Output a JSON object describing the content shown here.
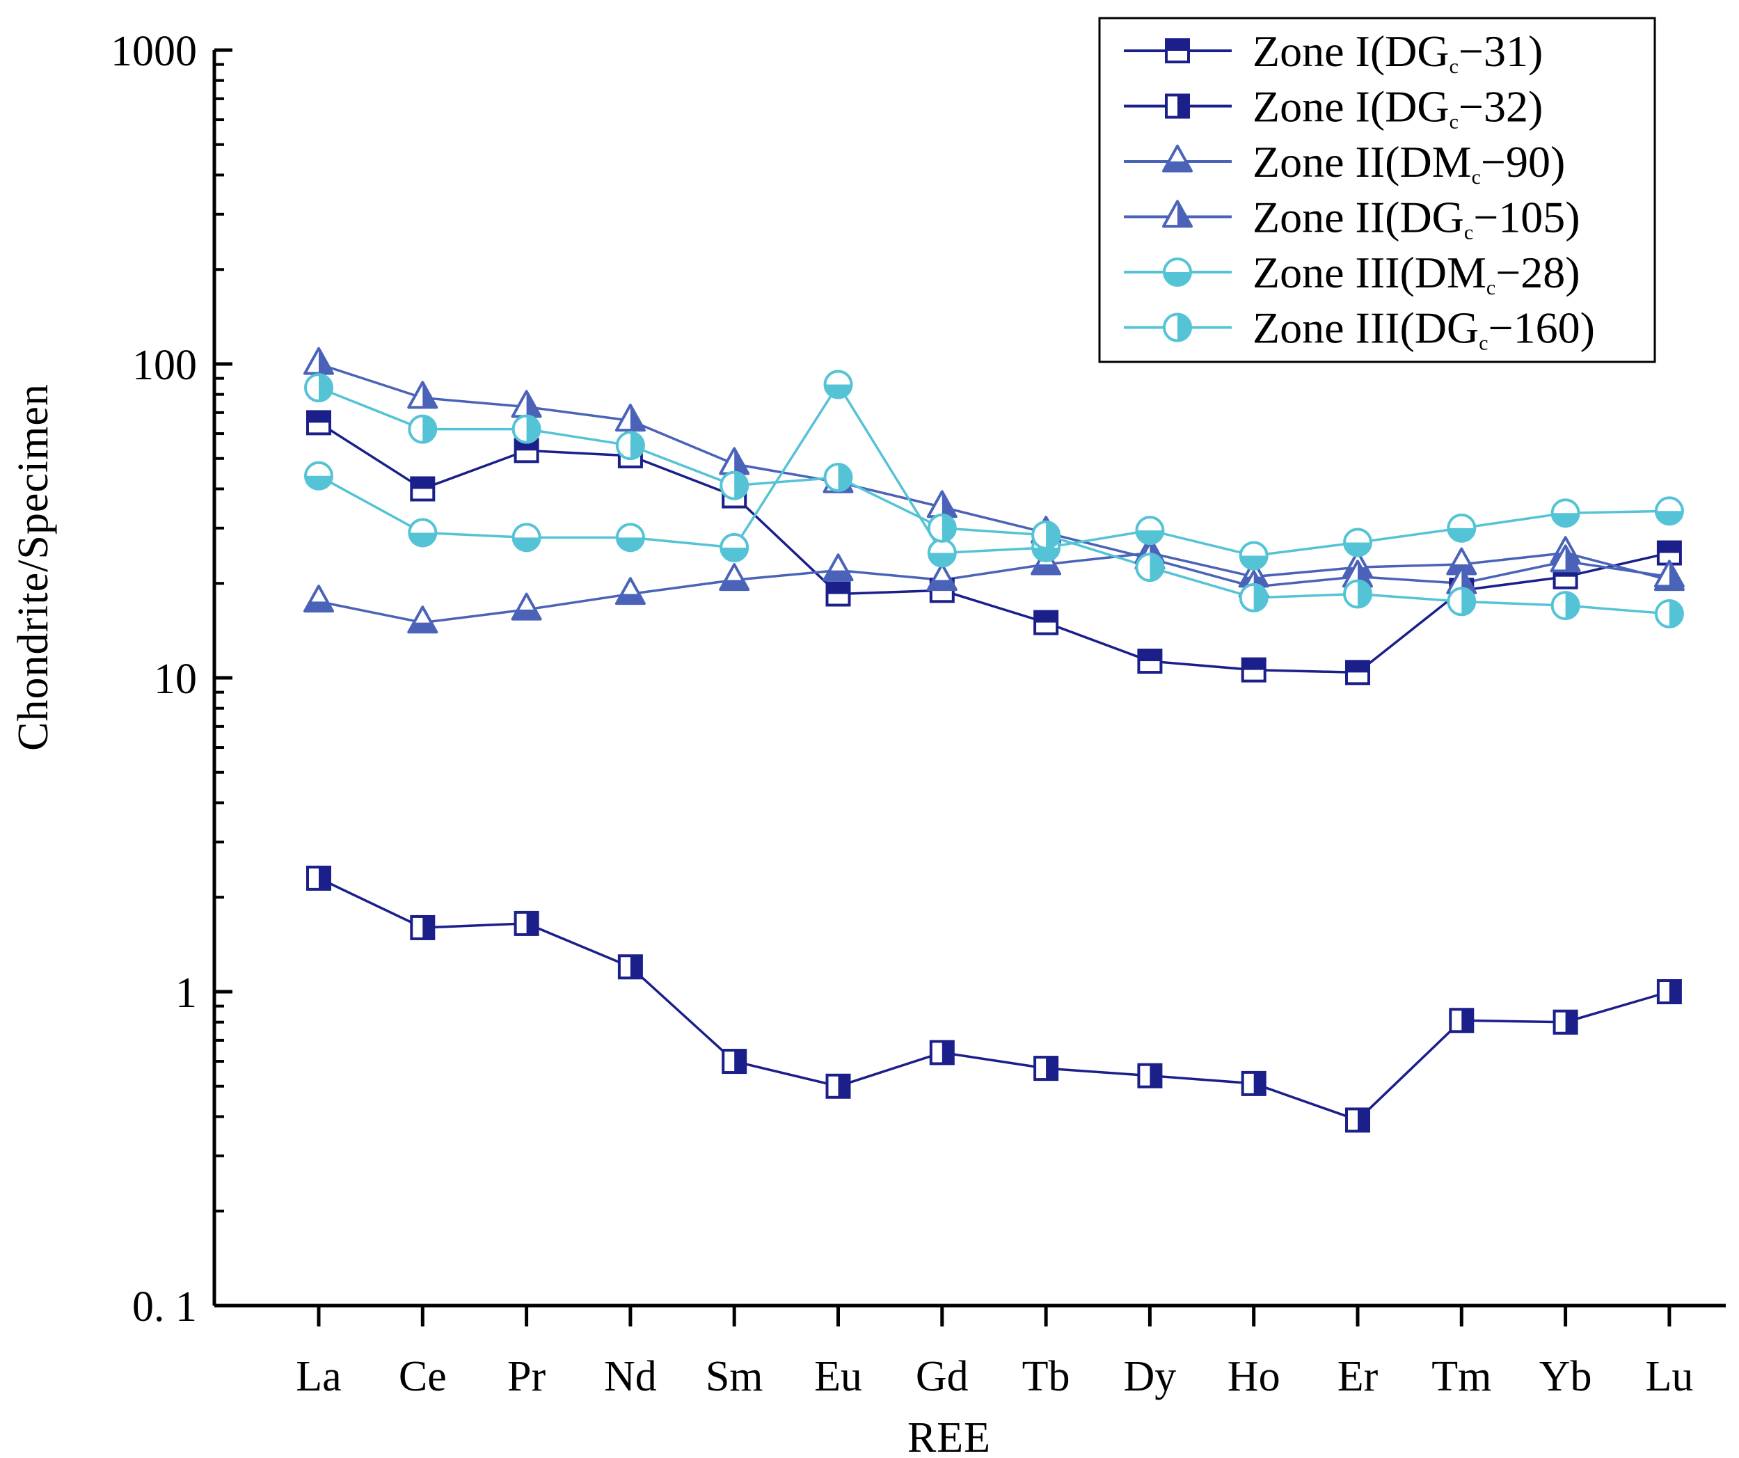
{
  "chart_data": {
    "type": "line",
    "yscale": "log",
    "xlabel": "REE",
    "ylabel": "Chondrite/Specimen",
    "ylim": [
      0.1,
      1000
    ],
    "yticks": [
      "0. 1",
      "1",
      "10",
      "100",
      "1000"
    ],
    "categories": [
      "La",
      "Ce",
      "Pr",
      "Nd",
      "Sm",
      "Eu",
      "Gd",
      "Tb",
      "Dy",
      "Ho",
      "Er",
      "Tm",
      "Yb",
      "Lu"
    ],
    "legend_position": "top-right",
    "series": [
      {
        "name": "Zone I(DGc−31)",
        "legend": {
          "prefix": "Zone I(DG",
          "sub": "c",
          "suffix": "−31)"
        },
        "marker": "square-top-filled",
        "color": "#1a1f8a",
        "values": [
          65,
          40,
          53,
          51,
          38,
          18.5,
          19,
          15,
          11.3,
          10.6,
          10.4,
          19,
          21,
          25
        ]
      },
      {
        "name": "Zone I(DGc−32)",
        "legend": {
          "prefix": "Zone I(DG",
          "sub": "c",
          "suffix": "−32)"
        },
        "marker": "square-right-filled",
        "color": "#1a1f8a",
        "values": [
          2.3,
          1.6,
          1.65,
          1.2,
          0.6,
          0.5,
          0.64,
          0.57,
          0.54,
          0.51,
          0.39,
          0.81,
          0.8,
          1.0
        ]
      },
      {
        "name": "Zone II(DMc−90)",
        "legend": {
          "prefix": "Zone II(DM",
          "sub": "c",
          "suffix": "−90)"
        },
        "marker": "triangle-bottom-filled",
        "color": "#4a63b8",
        "values": [
          17.5,
          15,
          16.5,
          18.5,
          20.5,
          22,
          20.5,
          23,
          25,
          21,
          22.5,
          23,
          25,
          20.5
        ]
      },
      {
        "name": "Zone II(DGc−105)",
        "legend": {
          "prefix": "Zone II(DG",
          "sub": "c",
          "suffix": "−105)"
        },
        "marker": "triangle-right-filled",
        "color": "#4a63b8",
        "values": [
          100,
          78,
          73,
          66,
          48,
          42,
          35,
          29,
          24,
          19.5,
          21,
          20,
          23.5,
          21
        ]
      },
      {
        "name": "Zone III(DMc−28)",
        "legend": {
          "prefix": "Zone III(DM",
          "sub": "c",
          "suffix": "−28)"
        },
        "marker": "circle-bottom-filled",
        "color": "#55c3d6",
        "values": [
          44,
          29,
          28,
          28,
          26,
          86,
          25,
          26,
          29.5,
          24.5,
          27,
          30,
          33.5,
          34
        ]
      },
      {
        "name": "Zone III(DGc−160)",
        "legend": {
          "prefix": "Zone III(DG",
          "sub": "c",
          "suffix": "−160)"
        },
        "marker": "circle-right-filled",
        "color": "#55c3d6",
        "values": [
          84,
          62,
          62,
          55,
          41,
          43.5,
          30,
          28.5,
          22.5,
          18,
          18.5,
          17.5,
          17,
          16
        ]
      }
    ]
  }
}
